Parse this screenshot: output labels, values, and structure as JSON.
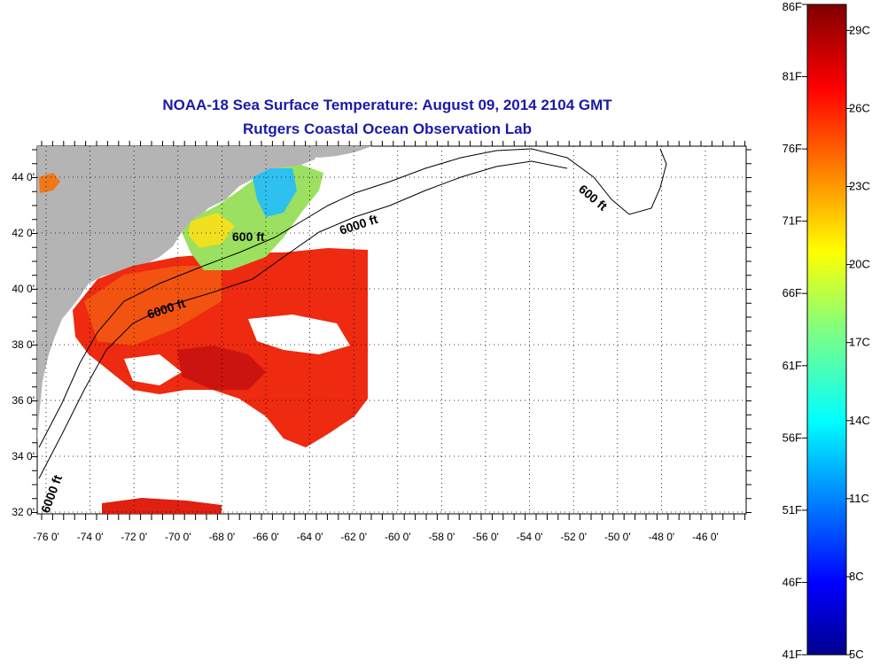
{
  "header": {
    "title": "NOAA-18 Sea Surface Temperature:  August 09, 2014 2104 GMT",
    "subtitle": "Rutgers Coastal Ocean Observation Lab"
  },
  "map": {
    "lon_ticks": [
      "-76 0'",
      "-74 0'",
      "-72 0'",
      "-70 0'",
      "-68 0'",
      "-66 0'",
      "-64 0'",
      "-62 0'",
      "-60 0'",
      "-58 0'",
      "-56 0'",
      "-54 0'",
      "-52 0'",
      "-50 0'",
      "-48 0'",
      "-46 0'"
    ],
    "lat_ticks": [
      "44 0'",
      "42 0'",
      "40 0'",
      "38 0'",
      "36 0'",
      "34 0'",
      "32 0'"
    ],
    "contour_labels": [
      "600 ft",
      "6000 ft",
      "600 ft",
      "6000 ft",
      "6000 ft"
    ],
    "land_color": "#b4b4b4",
    "grid": true
  },
  "colorbar": {
    "fahrenheit_labels": [
      "86F",
      "81F",
      "76F",
      "71F",
      "66F",
      "61F",
      "56F",
      "51F",
      "46F",
      "41F"
    ],
    "celsius_labels": [
      "29C",
      "26C",
      "23C",
      "20C",
      "17C",
      "14C",
      "11C",
      "8C",
      "5C"
    ],
    "colormap": "jet",
    "range_F": [
      41,
      86
    ],
    "range_C": [
      5,
      30
    ]
  }
}
